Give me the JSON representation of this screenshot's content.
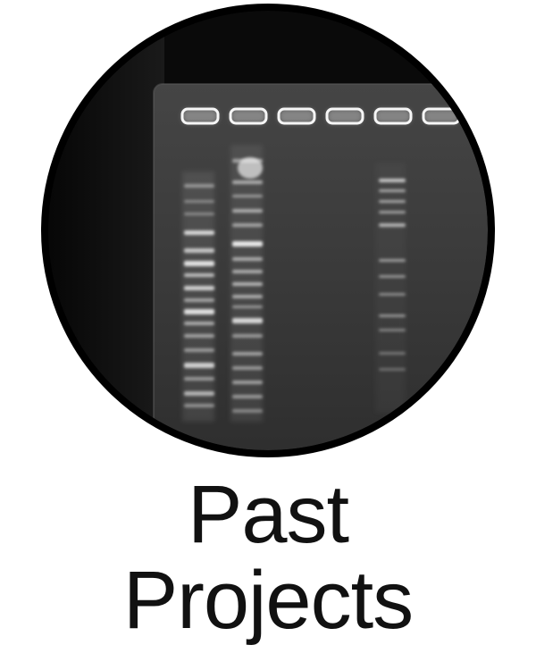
{
  "tile": {
    "caption_line1": "Past",
    "caption_line2": "Projects",
    "image_icon": "gel-electrophoresis-photo-icon",
    "colors": {
      "ring": "#000000",
      "gel_background": "#3a3a3a",
      "band": "#f2f2f2",
      "caption_text": "#111111",
      "page_background": "#ffffff"
    }
  }
}
